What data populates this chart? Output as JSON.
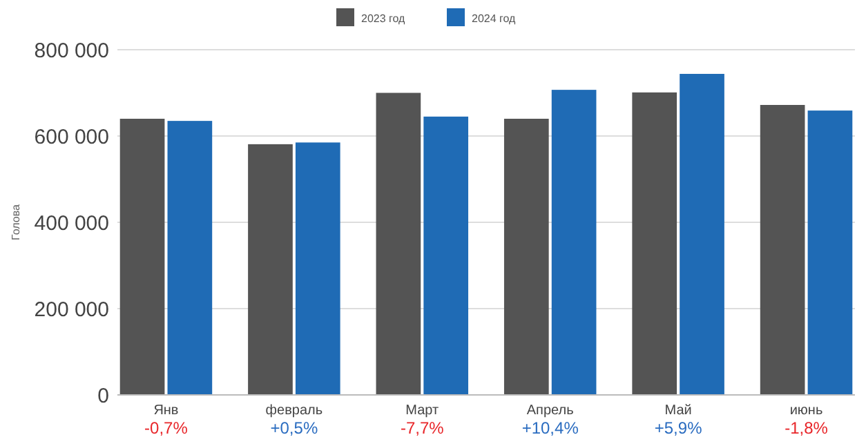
{
  "chart_data": {
    "type": "bar",
    "ylabel": "Голова",
    "categories": [
      "Янв",
      "февраль",
      "Март",
      "Апрель",
      "Май",
      "июнь"
    ],
    "series": [
      {
        "name": "2023 год",
        "color": "#545454",
        "values": [
          640000,
          581000,
          700000,
          640000,
          701000,
          672000
        ]
      },
      {
        "name": "2024 год",
        "color": "#1f6bb5",
        "values": [
          635000,
          585000,
          645000,
          707000,
          744000,
          659000
        ]
      }
    ],
    "ylim": [
      0,
      800000
    ],
    "yticks": [
      {
        "value": 0,
        "label": "0"
      },
      {
        "value": 200000,
        "label": "200 000"
      },
      {
        "value": 400000,
        "label": "400 000"
      },
      {
        "value": 600000,
        "label": "600 000"
      },
      {
        "value": 800000,
        "label": "800 000"
      }
    ],
    "grid": "y",
    "legend": "top",
    "annotations": [
      "-0,7%",
      "+0,5%",
      "-7,7%",
      "+10,4%",
      "+5,9%",
      "-1,8%"
    ]
  }
}
